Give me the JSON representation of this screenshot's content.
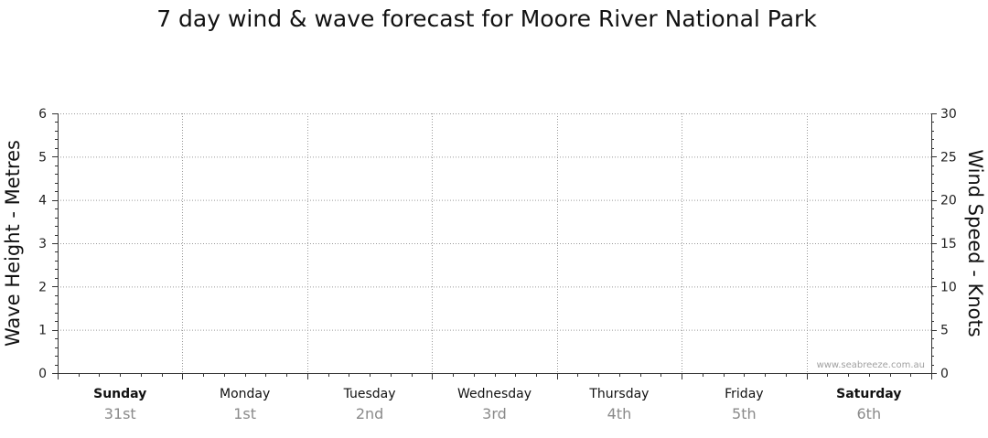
{
  "chart_data": {
    "type": "line",
    "title": "7 day wind & wave forecast for Moore River National Park",
    "left_axis": {
      "label": "Wave Height - Metres",
      "ylim": [
        0,
        6
      ],
      "ticks": [
        0,
        1,
        2,
        3,
        4,
        5,
        6
      ]
    },
    "right_axis": {
      "label": "Wind Speed - Knots",
      "ylim": [
        0,
        30
      ],
      "ticks": [
        0,
        5,
        10,
        15,
        20,
        25,
        30
      ]
    },
    "days": [
      {
        "name": "Sunday",
        "date": "31st",
        "weekend": true
      },
      {
        "name": "Monday",
        "date": "1st",
        "weekend": false
      },
      {
        "name": "Tuesday",
        "date": "2nd",
        "weekend": false
      },
      {
        "name": "Wednesday",
        "date": "3rd",
        "weekend": false
      },
      {
        "name": "Thursday",
        "date": "4th",
        "weekend": false
      },
      {
        "name": "Friday",
        "date": "5th",
        "weekend": false
      },
      {
        "name": "Saturday",
        "date": "6th",
        "weekend": true
      }
    ],
    "series": [],
    "grid": true,
    "watermark": "www.seabreeze.com.au"
  }
}
